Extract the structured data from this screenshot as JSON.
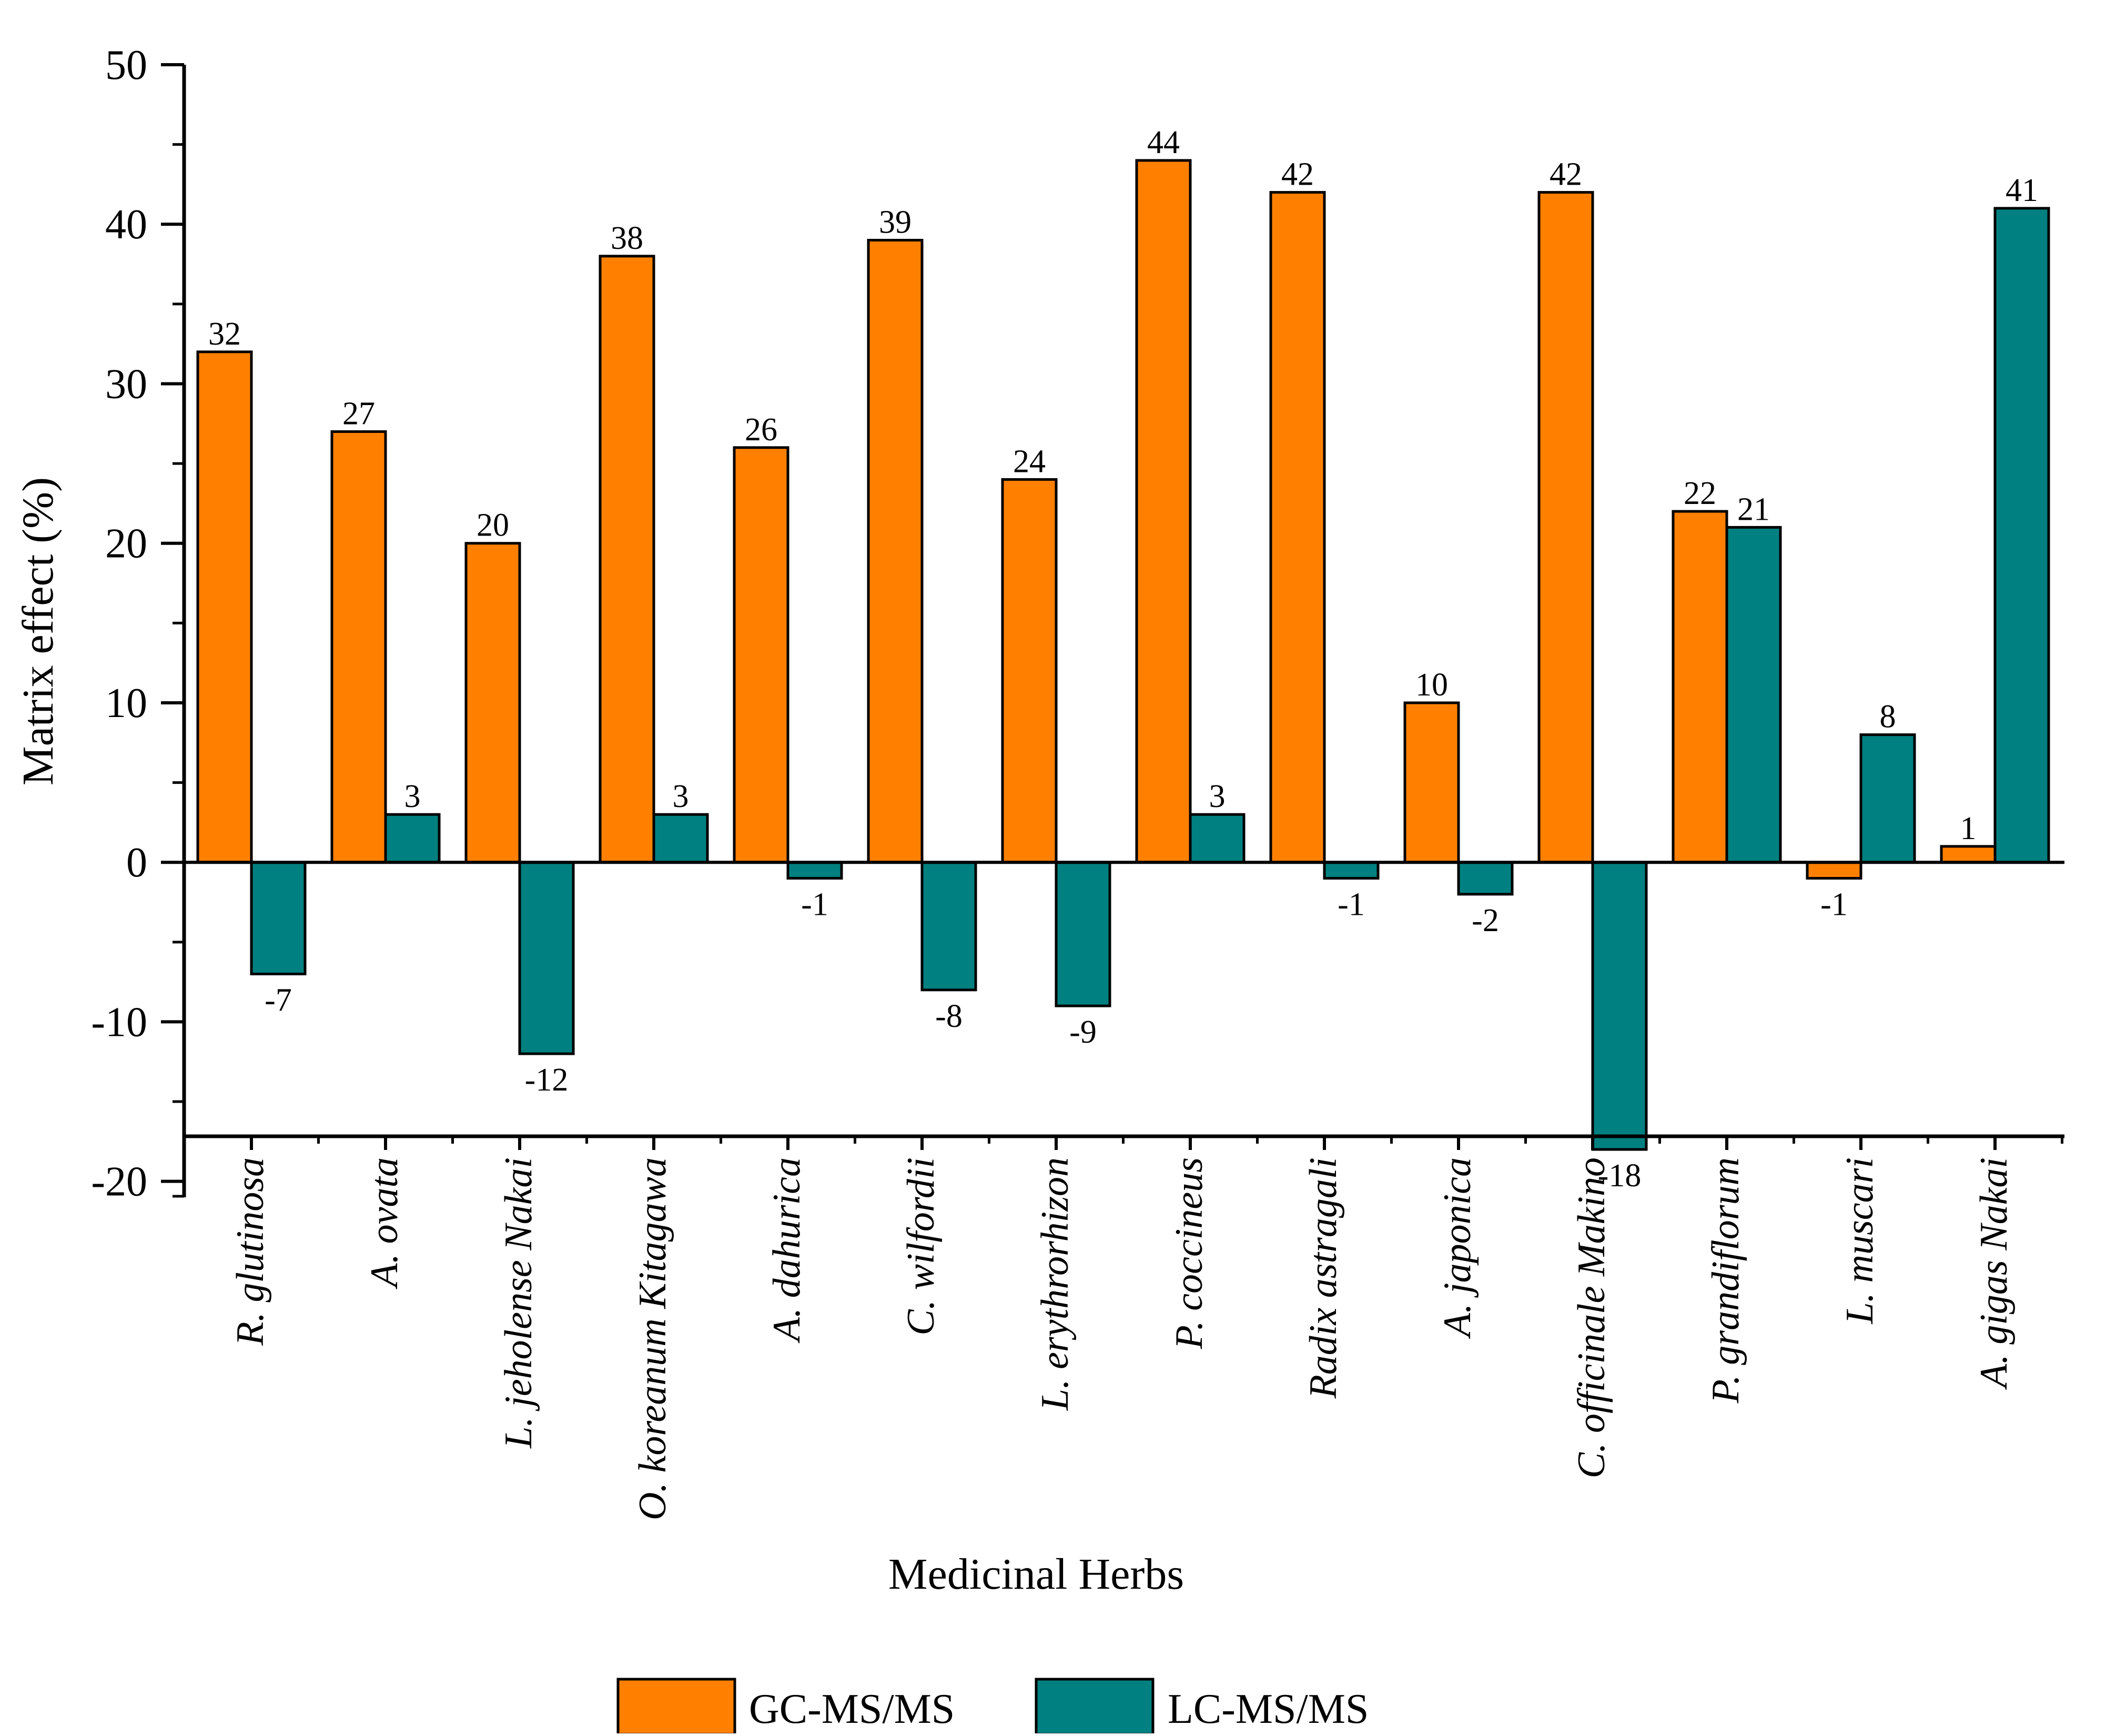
{
  "chart_data": {
    "type": "bar",
    "title": "",
    "xlabel": "Medicinal Herbs",
    "ylabel": "Matrix effect (%)",
    "ylim": [
      -21,
      50
    ],
    "yticks": [
      -20,
      -10,
      0,
      10,
      20,
      30,
      40,
      50
    ],
    "categories": [
      "R. glutinosa",
      "A. ovata",
      "L. jeholense Nakai",
      "O. koreanum Kitagawa",
      "A. dahurica",
      "C. wilfordii",
      "L. erythrorhizon",
      "P. coccineus",
      "Radix astragali",
      "A. japonica",
      "C. officinale Makino",
      "P. grandiflorum",
      "L. muscari",
      "A. gigas Nakai"
    ],
    "series": [
      {
        "name": "GC-MS/MS",
        "color": "#ff8000",
        "values": [
          32,
          27,
          20,
          38,
          26,
          39,
          24,
          44,
          42,
          10,
          42,
          22,
          -1,
          1
        ]
      },
      {
        "name": "LC-MS/MS",
        "color": "#008080",
        "values": [
          -7,
          3,
          -12,
          3,
          -1,
          -8,
          -9,
          3,
          -1,
          -2,
          -18,
          21,
          8,
          41
        ]
      }
    ],
    "grid": false,
    "legend": "bottom-center",
    "data_labels": true
  }
}
